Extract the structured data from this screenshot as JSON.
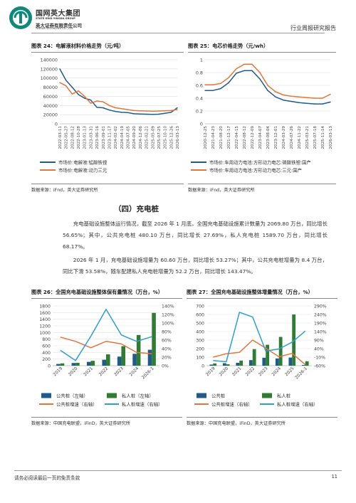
{
  "header": {
    "company_cn": "国网英大集团",
    "company_en": "STATE GRID YINGDA GROUP",
    "sub_cn": "英大证券有限责任公司",
    "sub_en": "YINGDA SECURITIES CO., LTD.",
    "report_type": "行业周报研究报告"
  },
  "fig24": {
    "title": "图表 24：电解液材料价格走势（元/吨）",
    "source": "数据来源：iFnd，英大证券研究所"
  },
  "fig25": {
    "title": "图表 25：电芯价格走势（元/wh）",
    "source": "数据来源：iFnd，英大证券研究所"
  },
  "section": {
    "title": "（四）充电桩",
    "para1": "充电基础设施整体运行情况，截至 2026 年 1 月底，全国充电基础设施累计数量为 2069.80 万台，同比增长 56.65%；其中，公共充电桩 480.10 万台，同比增长 27.69%，私人充电桩 1589.70 万台，同比增长 68.17%。",
    "para2": "2026 年 1 月，充电基础设施增量为 60.60 万台，同比增长 53.27%；其中，公共充电桩增量为 8.4 万台，同比下滑 53.58%，随车配建私人充电桩增量为 52.2 万台，同比增长 143.47%。"
  },
  "fig26": {
    "title": "图表 26：全国充电基础设施整体保有量情况（万台，%）",
    "source": "数据来源：中国充电联盟，iFinD，英大证券研究所"
  },
  "fig27": {
    "title": "图表 27：全国充电基础设施整体增量情况（万台，%）",
    "source": "数据来源：中国充电联盟，iFinD，英大证券研究所"
  },
  "footer": {
    "disclaimer": "请务必阅读最后一页的免责条款",
    "page": "11"
  },
  "chart_data": [
    {
      "id": "fig24",
      "type": "line",
      "ylim": [
        0,
        140000
      ],
      "yticks": [
        "0",
        "20000",
        "40000",
        "60000",
        "80000",
        "100000",
        "120000",
        "140000"
      ],
      "x": [
        "2022-03-11",
        "2022-05-27",
        "2022-08-12",
        "2022-10-28",
        "2023-01-13",
        "2023-03-31",
        "2023-06-16",
        "2023-09-01",
        "2023-11-17",
        "2024-02-02",
        "2024-04-19",
        "2024-07-05",
        "2024-09-20",
        "2024-12-06",
        "2025-02-21",
        "2025-05-09",
        "2025-07-25",
        "2025-10-10",
        "2025-12-26",
        "2026-03-13"
      ],
      "series": [
        {
          "name": "市场价:电解液:锰酸铁锂",
          "color": "#1f5c8c",
          "values": [
            120000,
            95000,
            80000,
            64000,
            56000,
            52000,
            36000,
            35000,
            30000,
            27000,
            25000,
            24500,
            22000,
            21500,
            21000,
            20500,
            21000,
            23000,
            25000,
            35000
          ]
        },
        {
          "name": "市场价:电解液:动力三元",
          "color": "#e8743b",
          "values": [
            90000,
            83000,
            65000,
            72000,
            60000,
            45000,
            50000,
            48000,
            40000,
            35000,
            33000,
            31000,
            29000,
            28500,
            28000,
            27500,
            28000,
            28500,
            29000,
            31000
          ]
        }
      ]
    },
    {
      "id": "fig25",
      "type": "line",
      "ylim": [
        0,
        1
      ],
      "yticks": [
        "0",
        "0.2",
        "0.4",
        "0.6",
        "0.8",
        "1"
      ],
      "x": [
        "2020-12-25",
        "2021-04-23",
        "2021-08-20",
        "2021-12-17",
        "2022-04-15",
        "2022-08-12",
        "2022-12-09",
        "2023-04-07",
        "2023-08-04",
        "2023-12-01",
        "2024-03-29",
        "2024-07-26",
        "2024-11-22",
        "2025-03-21",
        "2025-07-18",
        "2025-11-14",
        "2026-03-13"
      ],
      "series": [
        {
          "name": "市场价:车用动力电池:方形动力电芯:磷酸铁锂:国产",
          "color": "#1f5c8c",
          "values": [
            0.52,
            0.52,
            0.55,
            0.64,
            0.79,
            0.83,
            0.83,
            0.7,
            0.52,
            0.42,
            0.37,
            0.35,
            0.33,
            0.32,
            0.31,
            0.31,
            0.34
          ]
        },
        {
          "name": "市场价:车用动力电池:方形动力电芯:三元:国产",
          "color": "#e8743b",
          "values": [
            0.61,
            0.61,
            0.63,
            0.72,
            0.86,
            0.93,
            0.93,
            0.8,
            0.6,
            0.5,
            0.45,
            0.43,
            0.42,
            0.41,
            0.4,
            0.4,
            0.46
          ]
        }
      ]
    },
    {
      "id": "fig26",
      "type": "bar",
      "categories": [
        "2019",
        "2020",
        "2021",
        "2022",
        "2023",
        "2024",
        "2026-1"
      ],
      "ylim_left": [
        0,
        1800
      ],
      "ylim_right": [
        0,
        140
      ],
      "yticks_left": [
        "0",
        "200",
        "400",
        "600",
        "800",
        "1000",
        "1200",
        "1400",
        "1600",
        "1800"
      ],
      "yticks_right": [
        "0%",
        "20%",
        "40%",
        "60%",
        "80%",
        "100%",
        "120%",
        "140%"
      ],
      "series": [
        {
          "name": "公共桩（左轴）",
          "axis": "left",
          "kind": "bar",
          "color": "#1f5c8c",
          "values": [
            52,
            81,
            115,
            180,
            273,
            358,
            480
          ]
        },
        {
          "name": "私人桩（左轴）",
          "axis": "left",
          "kind": "bar",
          "color": "#2f7d32",
          "values": [
            70,
            87,
            147,
            341,
            587,
            924,
            1590
          ]
        },
        {
          "name": "公共桩增速（右轴）",
          "axis": "right",
          "kind": "line",
          "color": "#e8743b",
          "values": [
            67,
            57,
            42,
            57,
            51,
            31,
            28
          ]
        },
        {
          "name": "私人桩增速（右轴）",
          "axis": "right",
          "kind": "line",
          "color": "#2a9fd6",
          "values": [
            36,
            12,
            69,
            132,
            72,
            57,
            68
          ]
        }
      ]
    },
    {
      "id": "fig27",
      "type": "bar",
      "categories": [
        "2019",
        "2020",
        "2021",
        "2022",
        "2023",
        "2024",
        "2025",
        "2026-1"
      ],
      "ylim_left": [
        0,
        700
      ],
      "ylim_right": [
        -60,
        290
      ],
      "yticks_left": [
        "0",
        "100",
        "200",
        "300",
        "400",
        "500",
        "600",
        "700"
      ],
      "yticks_right": [
        "-60%",
        "-10%",
        "40%",
        "90%",
        "140%",
        "190%",
        "240%",
        "290%"
      ],
      "series": [
        {
          "name": "公共桩",
          "axis": "left",
          "kind": "bar",
          "color": "#1f5c8c",
          "values": [
            13,
            29,
            34,
            65,
            93,
            85,
            95,
            8
          ]
        },
        {
          "name": "私人桩",
          "axis": "left",
          "kind": "bar",
          "color": "#2f7d32",
          "values": [
            27,
            17,
            60,
            194,
            245,
            337,
            600,
            52
          ]
        },
        {
          "name": "公共桩增速（右轴）",
          "axis": "right",
          "kind": "line",
          "color": "#e8743b",
          "values": [
            -10,
            10,
            18,
            90,
            43,
            -8,
            12,
            -54
          ]
        },
        {
          "name": "私人桩增速（右轴）",
          "axis": "right",
          "kind": "line",
          "color": "#2a9fd6",
          "values": [
            -30,
            -37,
            253,
            225,
            26,
            38,
            78,
            143
          ]
        }
      ]
    }
  ]
}
